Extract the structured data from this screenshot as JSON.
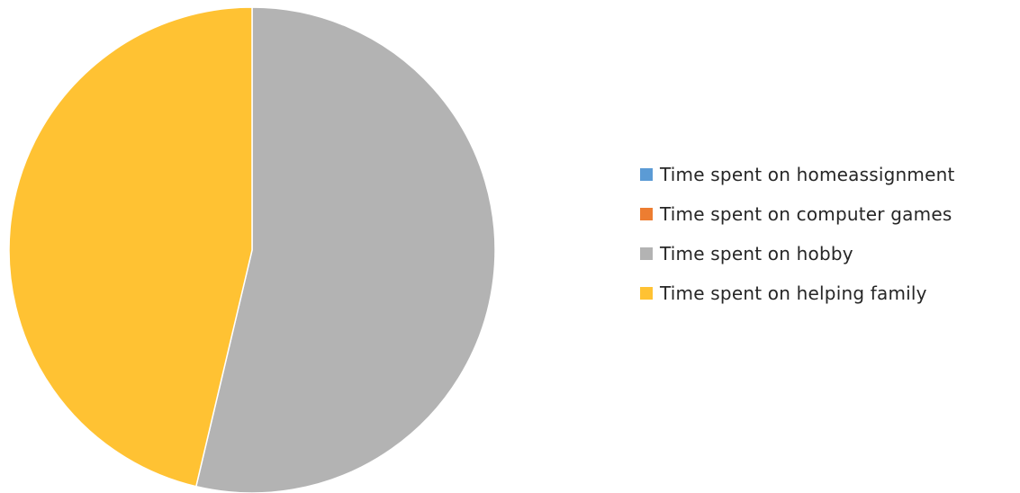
{
  "chart_data": {
    "type": "pie",
    "title": "",
    "series": [
      {
        "labels": [
          "Time spent on homeassignment",
          "Time spent on computer games",
          "Time spent on hobby",
          "Time spent on helping family"
        ],
        "values": [
          0,
          0,
          53.7,
          46.3
        ]
      }
    ],
    "colors": [
      "#5b9bd5",
      "#ed7d31",
      "#b3b3b3",
      "#ffc233"
    ],
    "legend_position": "right"
  },
  "legend": {
    "items": [
      {
        "label": "Time spent on homeassignment",
        "color": "#5b9bd5"
      },
      {
        "label": "Time spent on computer games",
        "color": "#ed7d31"
      },
      {
        "label": "Time spent on hobby",
        "color": "#b3b3b3"
      },
      {
        "label": "Time spent on helping family",
        "color": "#ffc233"
      }
    ]
  }
}
